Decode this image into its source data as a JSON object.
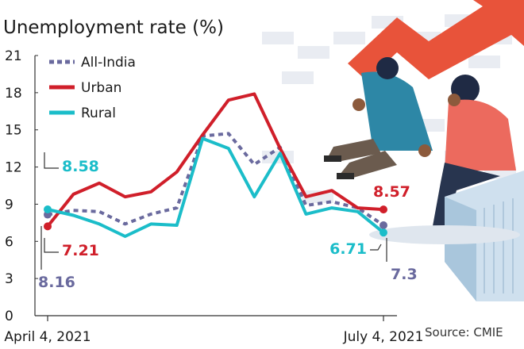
{
  "chart_data": {
    "type": "line",
    "title": "Unemployment rate (%)",
    "ylim": [
      0,
      21
    ],
    "yticks": [
      0,
      3,
      6,
      9,
      12,
      15,
      18,
      21
    ],
    "x_tick_labels": [
      {
        "index": 0,
        "label": "April 4, 2021"
      },
      {
        "index": 13,
        "label": "July 4, 2021"
      }
    ],
    "series": [
      {
        "name": "All-India",
        "color": "#6a6a9e",
        "dash": true,
        "values": [
          8.16,
          8.5,
          8.4,
          7.4,
          8.2,
          8.7,
          14.5,
          14.7,
          12.2,
          13.6,
          8.9,
          9.2,
          8.7,
          7.3
        ]
      },
      {
        "name": "Urban",
        "color": "#d01f2a",
        "dash": false,
        "values": [
          7.21,
          9.8,
          10.7,
          9.6,
          10.0,
          11.6,
          14.6,
          17.4,
          17.9,
          13.5,
          9.6,
          10.1,
          8.7,
          8.57
        ]
      },
      {
        "name": "Rural",
        "color": "#1bbdc9",
        "dash": false,
        "values": [
          8.58,
          8.1,
          7.4,
          6.4,
          7.4,
          7.3,
          14.3,
          13.5,
          9.6,
          13.1,
          8.2,
          8.7,
          8.4,
          6.71
        ]
      }
    ],
    "annotations": [
      {
        "text": "8.58",
        "series": "Rural",
        "index": 0
      },
      {
        "text": "7.21",
        "series": "Urban",
        "index": 0
      },
      {
        "text": "8.16",
        "series": "All-India",
        "index": 0
      },
      {
        "text": "8.57",
        "series": "Urban",
        "index": 13
      },
      {
        "text": "6.71",
        "series": "Rural",
        "index": 13
      },
      {
        "text": "7.3",
        "series": "All-India",
        "index": 13
      }
    ],
    "legend_position": "top-left",
    "source": "Source: CMIE"
  }
}
